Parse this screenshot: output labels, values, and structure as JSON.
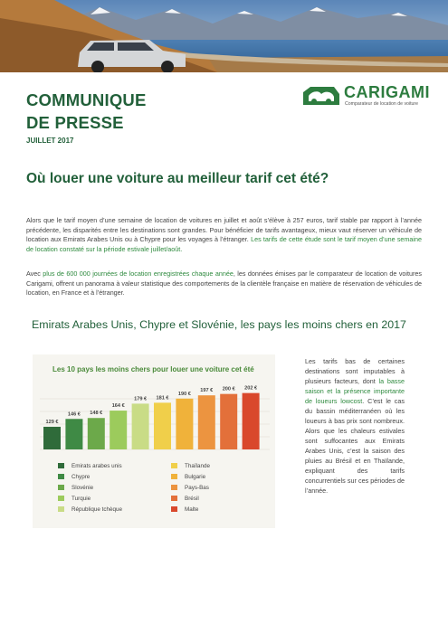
{
  "press": {
    "title_line1": "COMMUNIQUE",
    "title_line2": "DE PRESSE",
    "date": "JUILLET 2017"
  },
  "logo": {
    "name": "CARIGAMI",
    "tagline": "Comparateur de location de voiture",
    "colors": {
      "brand": "#2d7c3f"
    }
  },
  "headline": "Où louer une voiture au meilleur tarif cet été?",
  "intro": {
    "p1_a": "Alors que le tarif moyen d’une semaine de location de voitures en juillet et août s’élève à 257 euros, tarif stable par rapport à l’année précédente, les disparités entre les destinations sont grandes. Pour bénéficier de tarifs avantageux, mieux vaut réserver un véhicule de location aux Emirats Arabes Unis ou à Chypre pour les voyages à l’étranger.",
    "p1_b": "Les tarifs de cette étude sont le tarif moyen d’une semaine de location constaté sur la période estivale juillet/août.",
    "p2_a": "Avec",
    "p2_b": "plus de 600 000 journées de location enregistrées chaque année",
    "p2_c": ", les données émises par le comparateur de location de voitures Carigami, offrent un panorama à valeur statistique des comportements de la clientèle française en matière de réservation de véhicules de location, en France et à l’étranger."
  },
  "section_title": "Emirats Arabes Unis, Chypre et Slovénie, les pays les moins chers en 2017",
  "chart_data": {
    "type": "bar",
    "title": "Les 10 pays les moins chers pour louer une voiture cet été",
    "categories": [
      "Emirats arabes unis",
      "Chypre",
      "Slovénie",
      "Turquie",
      "République tchèque",
      "Thaïlande",
      "Bulgarie",
      "Pays-Bas",
      "Brésil",
      "Malte"
    ],
    "values": [
      129,
      146,
      148,
      164,
      179,
      181,
      190,
      197,
      200,
      202
    ],
    "value_labels": [
      "129 €",
      "146 €",
      "148 €",
      "164 €",
      "179 €",
      "181 €",
      "190 €",
      "197 €",
      "200 €",
      "202 €"
    ],
    "colors": [
      "#2f6b3a",
      "#3f8a45",
      "#6ca94a",
      "#9ccb5c",
      "#c9dc86",
      "#f0cf4a",
      "#f0b23a",
      "#ec9440",
      "#e3703a",
      "#d9482c"
    ],
    "legend": "bottom",
    "grid": false
  },
  "side_text": {
    "a": "Les tarifs bas de certaines destinations sont imputables à plusieurs facteurs, dont",
    "b": "la basse saison et la présence importante de loueurs lowcost",
    "c": ". C’est le cas du bassin méditerranéen où les loueurs à bas prix sont nombreux. Alors que les chaleurs estivales sont suffocantes aux Emirats Arabes Unis, c’est la saison des pluies au Brésil et en Thaïlande, expliquant des tarifs concurrentiels sur ces périodes de l’année."
  }
}
